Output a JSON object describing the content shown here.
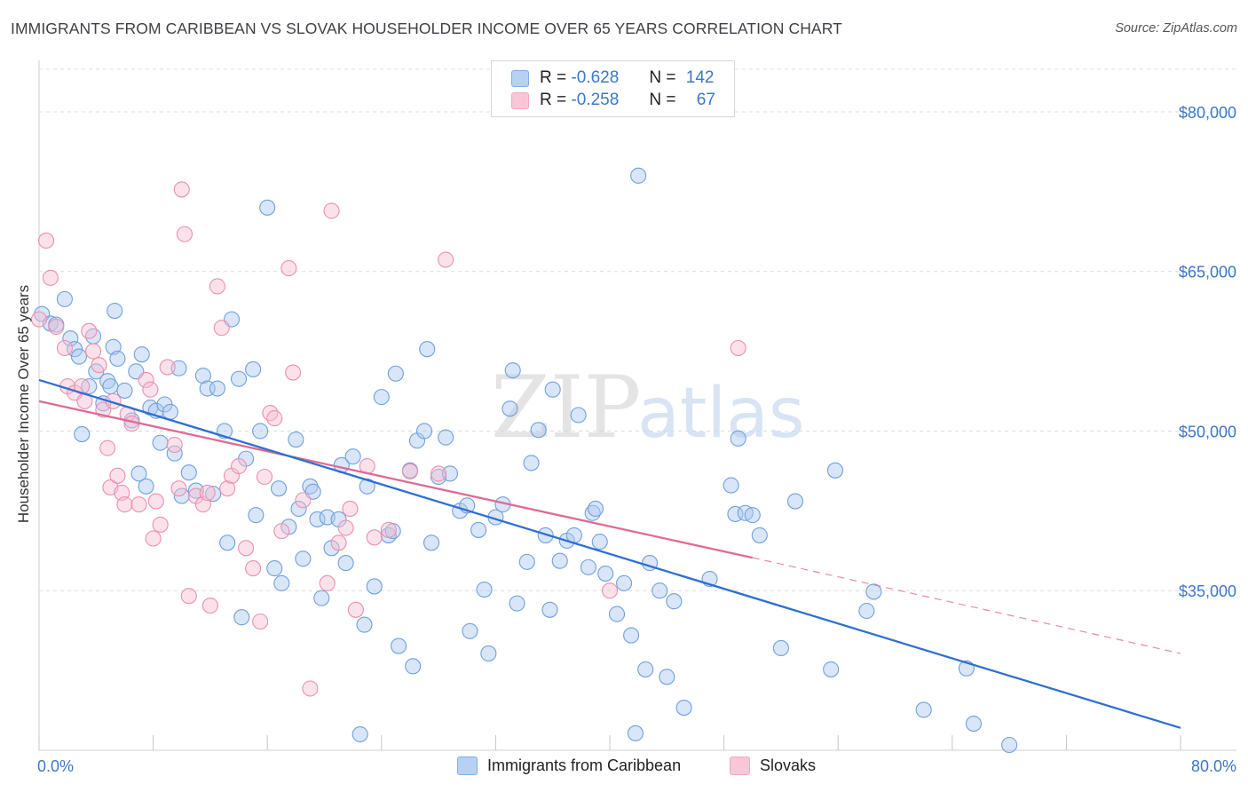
{
  "title": "IMMIGRANTS FROM CARIBBEAN VS SLOVAK HOUSEHOLDER INCOME OVER 65 YEARS CORRELATION CHART",
  "source": "Source: ZipAtlas.com",
  "watermark": {
    "zip": "ZIP",
    "atlas": "atlas"
  },
  "legend": {
    "r_label": "R =",
    "n_label": "N =",
    "rows": [
      {
        "r": "-0.628",
        "n": "142",
        "color": "#7eaee8"
      },
      {
        "r": "-0.258",
        "n": "67",
        "color": "#f3a8c2"
      }
    ]
  },
  "bottom_legend": [
    "Immigrants from Caribbean",
    "Slovaks"
  ],
  "colors": {
    "blue_fill": "#aac8f0",
    "blue_stroke": "#6fa0dd",
    "blue_line": "#2f6fd0",
    "pink_fill": "#f6bfd1",
    "pink_stroke": "#ec8fb0",
    "pink_line": "#e06a95",
    "axis_label": "#3a78c9",
    "grid": "#dcdcdc"
  },
  "chart_data": {
    "type": "scatter",
    "title": "IMMIGRANTS FROM CARIBBEAN VS SLOVAK HOUSEHOLDER INCOME OVER 65 YEARS CORRELATION CHART",
    "xlabel": "",
    "ylabel": "Householder Income Over 65 years",
    "xlim": [
      0,
      80
    ],
    "ylim": [
      20000,
      84000
    ],
    "x_tick_labels": [
      "0.0%",
      "80.0%"
    ],
    "y_ticks": [
      35000,
      50000,
      65000,
      80000
    ],
    "y_tick_labels": [
      "$35,000",
      "$50,000",
      "$65,000",
      "$80,000"
    ],
    "grid": true,
    "series": [
      {
        "name": "Immigrants from Caribbean",
        "r": -0.628,
        "n": 142,
        "trend": {
          "x": [
            0,
            80
          ],
          "y": [
            54800,
            22100
          ]
        },
        "points": [
          [
            0.2,
            61000
          ],
          [
            0.8,
            60100
          ],
          [
            1.2,
            60000
          ],
          [
            1.8,
            62400
          ],
          [
            2.2,
            58700
          ],
          [
            2.5,
            57700
          ],
          [
            2.8,
            57000
          ],
          [
            3.0,
            49700
          ],
          [
            3.5,
            54200
          ],
          [
            3.8,
            58900
          ],
          [
            4.0,
            55600
          ],
          [
            4.5,
            52600
          ],
          [
            4.8,
            54700
          ],
          [
            5.0,
            54200
          ],
          [
            5.2,
            57900
          ],
          [
            5.5,
            56800
          ],
          [
            5.3,
            61300
          ],
          [
            6.0,
            53800
          ],
          [
            6.5,
            51000
          ],
          [
            6.8,
            55600
          ],
          [
            7.0,
            46000
          ],
          [
            7.2,
            57200
          ],
          [
            7.5,
            44800
          ],
          [
            7.8,
            52200
          ],
          [
            8.2,
            51900
          ],
          [
            8.5,
            48900
          ],
          [
            8.8,
            52500
          ],
          [
            9.2,
            51800
          ],
          [
            9.5,
            47900
          ],
          [
            9.8,
            55900
          ],
          [
            10.0,
            43900
          ],
          [
            10.5,
            46100
          ],
          [
            11.0,
            44400
          ],
          [
            11.5,
            55200
          ],
          [
            11.8,
            54000
          ],
          [
            12.2,
            44100
          ],
          [
            12.5,
            54000
          ],
          [
            13.0,
            50000
          ],
          [
            13.2,
            39500
          ],
          [
            13.5,
            60500
          ],
          [
            14.0,
            54900
          ],
          [
            14.2,
            32500
          ],
          [
            14.5,
            47400
          ],
          [
            15.0,
            55800
          ],
          [
            15.2,
            42100
          ],
          [
            15.5,
            50000
          ],
          [
            16.0,
            71000
          ],
          [
            16.5,
            37100
          ],
          [
            16.8,
            44600
          ],
          [
            17.0,
            35700
          ],
          [
            17.5,
            41000
          ],
          [
            18.0,
            49200
          ],
          [
            18.2,
            42700
          ],
          [
            18.5,
            38000
          ],
          [
            19.0,
            44800
          ],
          [
            19.2,
            44300
          ],
          [
            19.5,
            41700
          ],
          [
            19.8,
            34300
          ],
          [
            20.2,
            41900
          ],
          [
            20.5,
            39000
          ],
          [
            21.0,
            41700
          ],
          [
            21.2,
            46800
          ],
          [
            21.5,
            37600
          ],
          [
            22.0,
            47600
          ],
          [
            22.5,
            21500
          ],
          [
            22.8,
            31800
          ],
          [
            23.0,
            44800
          ],
          [
            23.5,
            35400
          ],
          [
            24.0,
            53200
          ],
          [
            24.5,
            40200
          ],
          [
            24.8,
            40600
          ],
          [
            25.0,
            55400
          ],
          [
            25.2,
            29800
          ],
          [
            26.0,
            46300
          ],
          [
            26.2,
            27900
          ],
          [
            26.5,
            49100
          ],
          [
            27.0,
            50000
          ],
          [
            27.2,
            57700
          ],
          [
            27.5,
            39500
          ],
          [
            28.0,
            45700
          ],
          [
            28.5,
            49400
          ],
          [
            28.8,
            46000
          ],
          [
            29.5,
            42500
          ],
          [
            30.0,
            43000
          ],
          [
            30.2,
            31200
          ],
          [
            30.8,
            40700
          ],
          [
            31.2,
            35100
          ],
          [
            31.5,
            29100
          ],
          [
            32.0,
            41900
          ],
          [
            32.5,
            43100
          ],
          [
            33.0,
            52100
          ],
          [
            33.2,
            55700
          ],
          [
            33.5,
            33800
          ],
          [
            34.2,
            37700
          ],
          [
            34.5,
            47000
          ],
          [
            35.0,
            50100
          ],
          [
            35.5,
            40200
          ],
          [
            35.8,
            33200
          ],
          [
            36.0,
            53900
          ],
          [
            36.5,
            37800
          ],
          [
            37.0,
            39700
          ],
          [
            37.5,
            40200
          ],
          [
            37.8,
            51500
          ],
          [
            38.5,
            37200
          ],
          [
            38.8,
            42300
          ],
          [
            39.0,
            42700
          ],
          [
            39.3,
            39600
          ],
          [
            39.7,
            36600
          ],
          [
            40.5,
            32800
          ],
          [
            41.0,
            35700
          ],
          [
            41.5,
            30800
          ],
          [
            41.8,
            21600
          ],
          [
            42.0,
            74000
          ],
          [
            42.5,
            27600
          ],
          [
            42.8,
            37600
          ],
          [
            43.5,
            35000
          ],
          [
            44.0,
            26900
          ],
          [
            44.5,
            34000
          ],
          [
            45.2,
            24000
          ],
          [
            47.0,
            36100
          ],
          [
            48.5,
            44900
          ],
          [
            48.8,
            42200
          ],
          [
            49.0,
            49300
          ],
          [
            49.5,
            42300
          ],
          [
            50.0,
            42100
          ],
          [
            50.5,
            40200
          ],
          [
            52.0,
            29600
          ],
          [
            53.0,
            43400
          ],
          [
            55.5,
            27600
          ],
          [
            55.8,
            46300
          ],
          [
            58.0,
            33100
          ],
          [
            58.5,
            34900
          ],
          [
            62.0,
            23800
          ],
          [
            65.0,
            27700
          ],
          [
            65.5,
            22500
          ],
          [
            68.0,
            20500
          ]
        ]
      },
      {
        "name": "Slovaks",
        "r": -0.258,
        "n": 67,
        "trend": {
          "x": [
            0,
            50
          ],
          "y": [
            52800,
            38100
          ]
        },
        "trend_dashed": {
          "x": [
            50,
            80
          ],
          "y": [
            38100,
            29100
          ]
        },
        "points": [
          [
            0.0,
            60500
          ],
          [
            0.5,
            67900
          ],
          [
            0.8,
            64400
          ],
          [
            1.2,
            59800
          ],
          [
            1.8,
            57800
          ],
          [
            2.0,
            54200
          ],
          [
            2.5,
            53600
          ],
          [
            3.0,
            54200
          ],
          [
            3.2,
            52800
          ],
          [
            3.5,
            59400
          ],
          [
            3.8,
            57500
          ],
          [
            4.2,
            56200
          ],
          [
            4.5,
            52000
          ],
          [
            4.8,
            48400
          ],
          [
            5.0,
            44700
          ],
          [
            5.2,
            52800
          ],
          [
            5.5,
            45800
          ],
          [
            5.8,
            44200
          ],
          [
            6.0,
            43100
          ],
          [
            6.2,
            51600
          ],
          [
            6.5,
            50700
          ],
          [
            7.0,
            43100
          ],
          [
            7.5,
            54800
          ],
          [
            7.8,
            53900
          ],
          [
            8.0,
            39900
          ],
          [
            8.2,
            43400
          ],
          [
            8.5,
            41200
          ],
          [
            9.0,
            56000
          ],
          [
            9.5,
            48700
          ],
          [
            9.8,
            44600
          ],
          [
            10.0,
            72700
          ],
          [
            10.2,
            68500
          ],
          [
            10.5,
            34500
          ],
          [
            11.0,
            43900
          ],
          [
            11.5,
            43100
          ],
          [
            11.8,
            44200
          ],
          [
            12.0,
            33600
          ],
          [
            12.5,
            63600
          ],
          [
            12.8,
            59700
          ],
          [
            13.2,
            44600
          ],
          [
            13.5,
            45800
          ],
          [
            14.0,
            46700
          ],
          [
            14.5,
            39000
          ],
          [
            15.0,
            37100
          ],
          [
            15.5,
            32100
          ],
          [
            15.8,
            45700
          ],
          [
            16.2,
            51700
          ],
          [
            16.5,
            51200
          ],
          [
            17.0,
            40600
          ],
          [
            17.5,
            65300
          ],
          [
            17.8,
            55500
          ],
          [
            18.5,
            43500
          ],
          [
            19.0,
            25800
          ],
          [
            20.2,
            35700
          ],
          [
            20.5,
            70700
          ],
          [
            21.0,
            39500
          ],
          [
            21.5,
            40900
          ],
          [
            21.8,
            42700
          ],
          [
            22.2,
            33200
          ],
          [
            23.0,
            46700
          ],
          [
            23.5,
            40000
          ],
          [
            24.5,
            40700
          ],
          [
            26.0,
            46200
          ],
          [
            28.0,
            46000
          ],
          [
            28.5,
            66100
          ],
          [
            40.0,
            35000
          ],
          [
            49.0,
            57800
          ]
        ]
      }
    ]
  }
}
